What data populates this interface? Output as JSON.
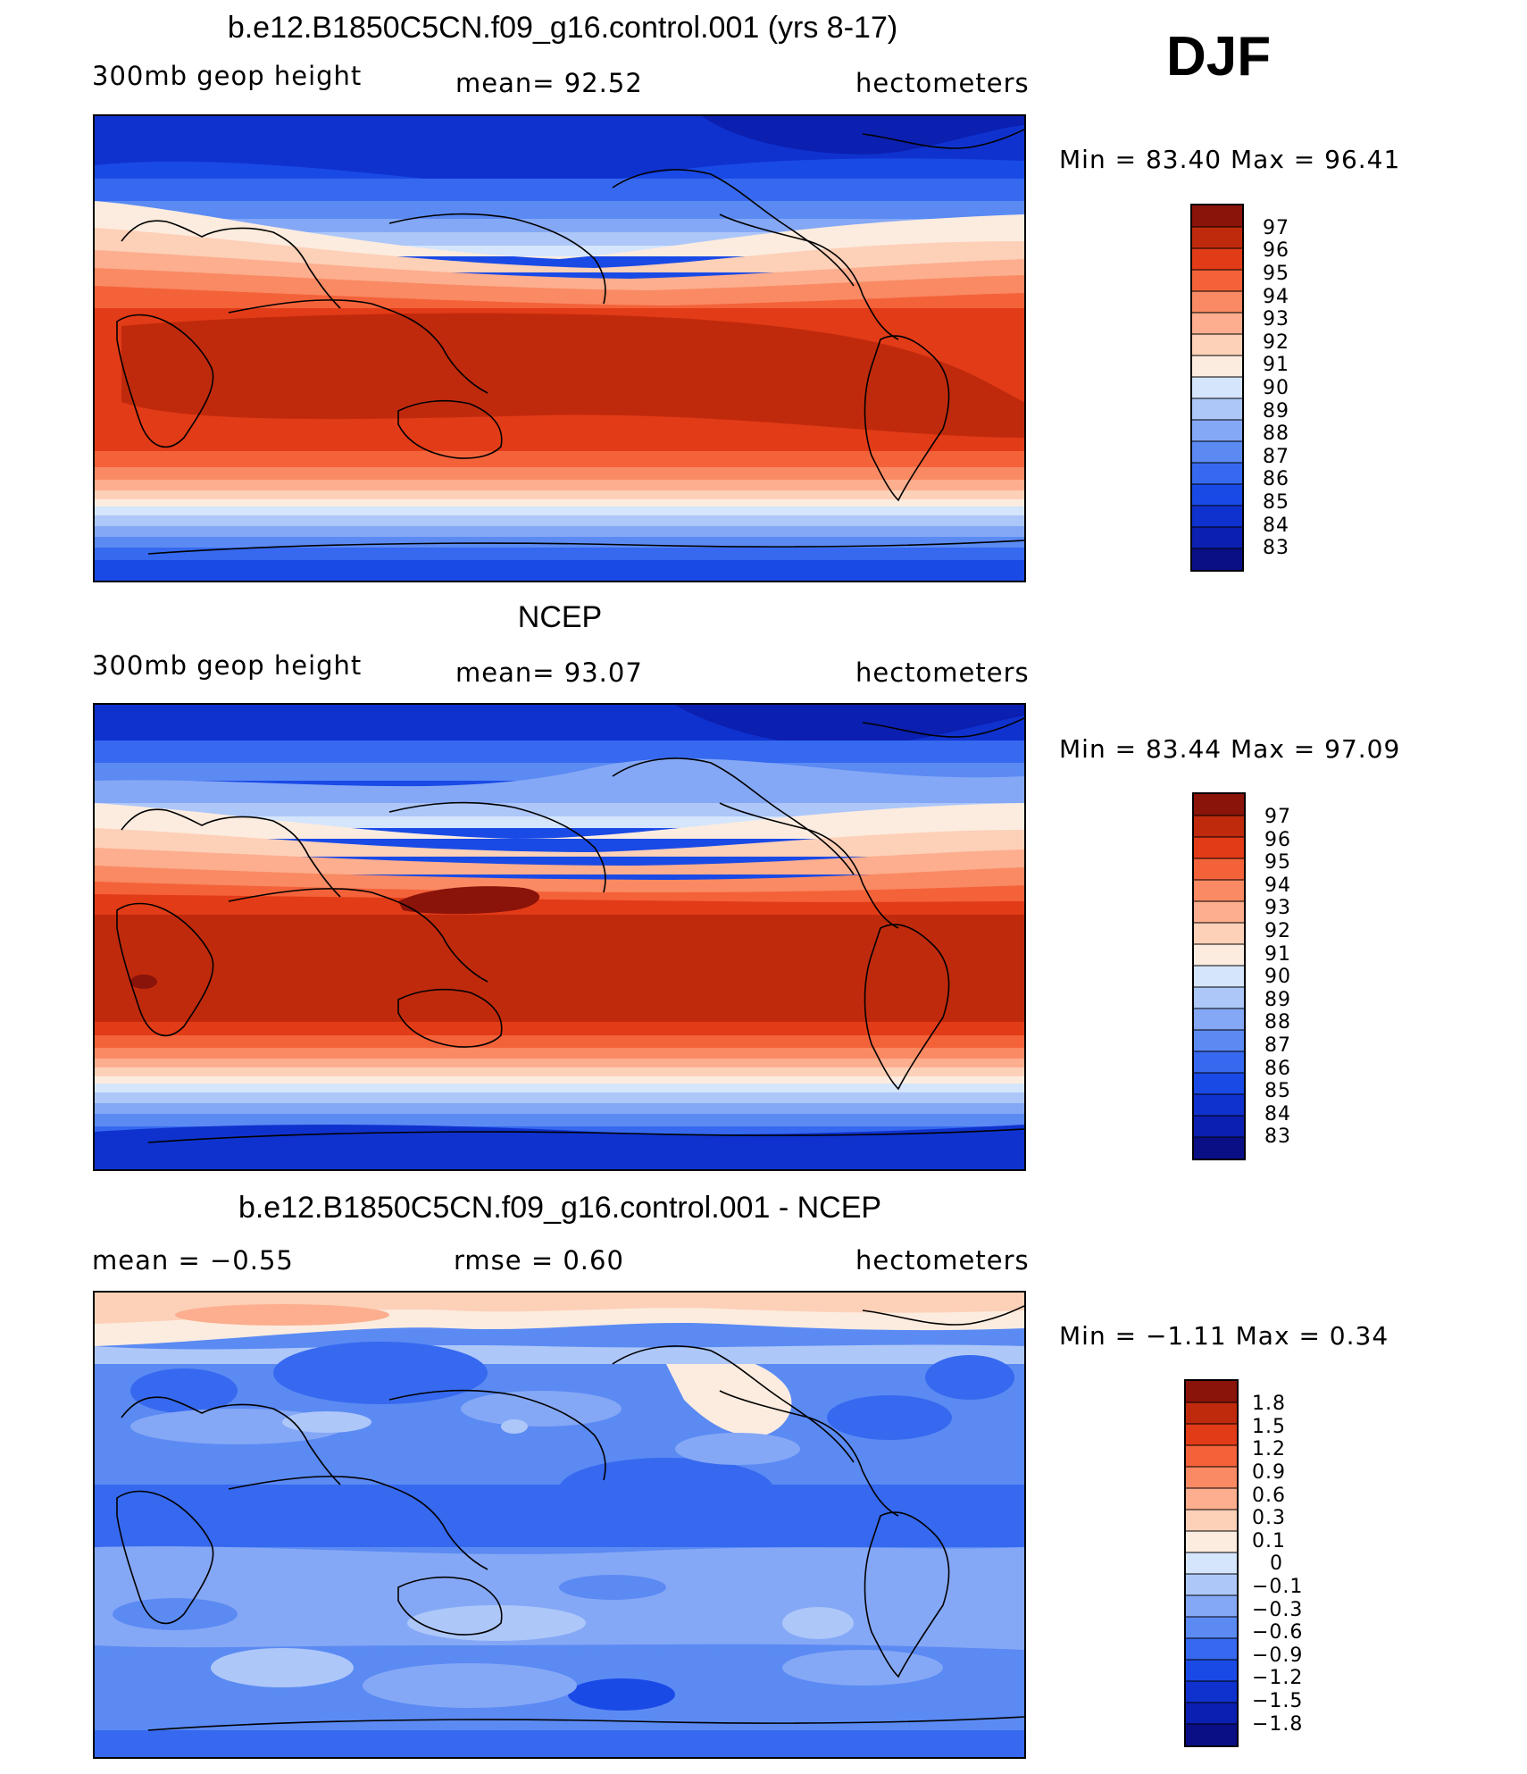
{
  "season": "DJF",
  "palettes": {
    "height": [
      "#0b0f85",
      "#0b1fb0",
      "#0f32cf",
      "#1a4ae6",
      "#3669ef",
      "#5b8af3",
      "#85a8f6",
      "#adc7f9",
      "#d5e5fb",
      "#fcecdf",
      "#fdd0b8",
      "#fcae8e",
      "#f98a63",
      "#f4623a",
      "#e23b17",
      "#c02a0c",
      "#8a130a"
    ],
    "diff": [
      "#0b0f85",
      "#0b1fb0",
      "#0f32cf",
      "#1a4ae6",
      "#3669ef",
      "#5b8af3",
      "#85a8f6",
      "#adc7f9",
      "#d5e5fb",
      "#fcecdf",
      "#fdd0b8",
      "#fcae8e",
      "#f98a63",
      "#f4623a",
      "#e23b17",
      "#c02a0c",
      "#8a130a"
    ]
  },
  "panels": [
    {
      "title": "b.e12.B1850C5CN.f09_g16.control.001 (yrs 8-17)",
      "left_label": "300mb geop height",
      "mid_label": "mean=  92.52",
      "right_label": "hectometers",
      "minmax": "Min =   83.40 Max =   96.41",
      "colorbar": {
        "labels": [
          "97",
          "96",
          "95",
          "94",
          "93",
          "92",
          "91",
          "90",
          "89",
          "88",
          "87",
          "86",
          "85",
          "84",
          "83"
        ]
      }
    },
    {
      "title": "NCEP",
      "left_label": "300mb geop height",
      "mid_label": "mean=  93.07",
      "right_label": "hectometers",
      "minmax": "Min =   83.44 Max =   97.09",
      "colorbar": {
        "labels": [
          "97",
          "96",
          "95",
          "94",
          "93",
          "92",
          "91",
          "90",
          "89",
          "88",
          "87",
          "86",
          "85",
          "84",
          "83"
        ]
      }
    },
    {
      "title": "b.e12.B1850C5CN.f09_g16.control.001 - NCEP",
      "left_label": "mean =   −0.55",
      "mid_label": "rmse =    0.60",
      "right_label": "hectometers",
      "minmax": "Min =   −1.11  Max =    0.34",
      "colorbar": {
        "labels": [
          "1.8",
          "1.5",
          "1.2",
          "0.9",
          "0.6",
          "0.3",
          "0.1",
          "0",
          "−0.1",
          "−0.3",
          "−0.6",
          "−0.9",
          "−1.2",
          "−1.5",
          "−1.8"
        ]
      }
    }
  ]
}
